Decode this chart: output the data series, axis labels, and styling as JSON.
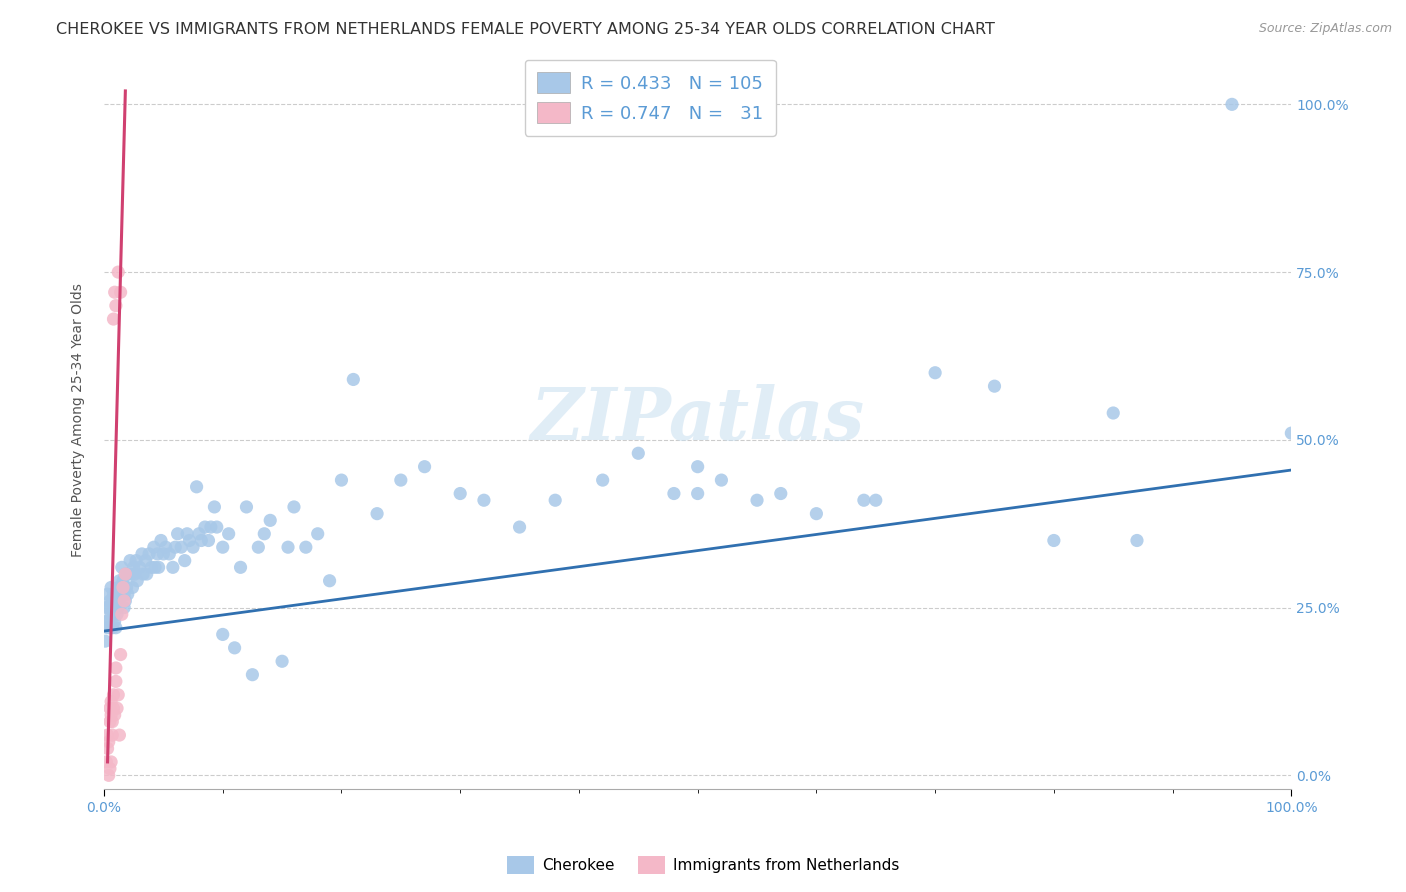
{
  "title": "CHEROKEE VS IMMIGRANTS FROM NETHERLANDS FEMALE POVERTY AMONG 25-34 YEAR OLDS CORRELATION CHART",
  "source": "Source: ZipAtlas.com",
  "ylabel": "Female Poverty Among 25-34 Year Olds",
  "watermark": "ZIPatlas",
  "legend_blue_R": "0.433",
  "legend_blue_N": "105",
  "legend_pink_R": "0.747",
  "legend_pink_N": "31",
  "legend_label_blue": "Cherokee",
  "legend_label_pink": "Immigrants from Netherlands",
  "xmin": 0.0,
  "xmax": 1.0,
  "ymin": -0.02,
  "ymax": 1.08,
  "blue_color": "#a8c8e8",
  "pink_color": "#f4b8c8",
  "trendline_blue_color": "#3070b0",
  "trendline_pink_color": "#d04070",
  "blue_scatter": [
    [
      0.001,
      0.2
    ],
    [
      0.002,
      0.25
    ],
    [
      0.002,
      0.23
    ],
    [
      0.003,
      0.27
    ],
    [
      0.003,
      0.22
    ],
    [
      0.004,
      0.25
    ],
    [
      0.004,
      0.23
    ],
    [
      0.005,
      0.26
    ],
    [
      0.005,
      0.22
    ],
    [
      0.006,
      0.28
    ],
    [
      0.006,
      0.24
    ],
    [
      0.007,
      0.26
    ],
    [
      0.007,
      0.22
    ],
    [
      0.008,
      0.24
    ],
    [
      0.008,
      0.27
    ],
    [
      0.009,
      0.25
    ],
    [
      0.009,
      0.23
    ],
    [
      0.01,
      0.26
    ],
    [
      0.01,
      0.22
    ],
    [
      0.011,
      0.27
    ],
    [
      0.011,
      0.24
    ],
    [
      0.012,
      0.28
    ],
    [
      0.012,
      0.25
    ],
    [
      0.013,
      0.29
    ],
    [
      0.013,
      0.26
    ],
    [
      0.014,
      0.27
    ],
    [
      0.015,
      0.31
    ],
    [
      0.015,
      0.28
    ],
    [
      0.016,
      0.29
    ],
    [
      0.017,
      0.27
    ],
    [
      0.017,
      0.25
    ],
    [
      0.018,
      0.3
    ],
    [
      0.018,
      0.26
    ],
    [
      0.019,
      0.28
    ],
    [
      0.02,
      0.3
    ],
    [
      0.02,
      0.27
    ],
    [
      0.022,
      0.32
    ],
    [
      0.023,
      0.3
    ],
    [
      0.024,
      0.28
    ],
    [
      0.025,
      0.31
    ],
    [
      0.026,
      0.3
    ],
    [
      0.027,
      0.32
    ],
    [
      0.028,
      0.29
    ],
    [
      0.03,
      0.31
    ],
    [
      0.032,
      0.33
    ],
    [
      0.033,
      0.3
    ],
    [
      0.035,
      0.32
    ],
    [
      0.036,
      0.3
    ],
    [
      0.038,
      0.33
    ],
    [
      0.04,
      0.31
    ],
    [
      0.042,
      0.34
    ],
    [
      0.043,
      0.31
    ],
    [
      0.045,
      0.33
    ],
    [
      0.046,
      0.31
    ],
    [
      0.048,
      0.35
    ],
    [
      0.05,
      0.33
    ],
    [
      0.052,
      0.34
    ],
    [
      0.055,
      0.33
    ],
    [
      0.058,
      0.31
    ],
    [
      0.06,
      0.34
    ],
    [
      0.062,
      0.36
    ],
    [
      0.065,
      0.34
    ],
    [
      0.068,
      0.32
    ],
    [
      0.07,
      0.36
    ],
    [
      0.072,
      0.35
    ],
    [
      0.075,
      0.34
    ],
    [
      0.078,
      0.43
    ],
    [
      0.08,
      0.36
    ],
    [
      0.082,
      0.35
    ],
    [
      0.085,
      0.37
    ],
    [
      0.088,
      0.35
    ],
    [
      0.09,
      0.37
    ],
    [
      0.093,
      0.4
    ],
    [
      0.095,
      0.37
    ],
    [
      0.1,
      0.21
    ],
    [
      0.1,
      0.34
    ],
    [
      0.105,
      0.36
    ],
    [
      0.11,
      0.19
    ],
    [
      0.115,
      0.31
    ],
    [
      0.12,
      0.4
    ],
    [
      0.125,
      0.15
    ],
    [
      0.13,
      0.34
    ],
    [
      0.135,
      0.36
    ],
    [
      0.14,
      0.38
    ],
    [
      0.15,
      0.17
    ],
    [
      0.155,
      0.34
    ],
    [
      0.16,
      0.4
    ],
    [
      0.17,
      0.34
    ],
    [
      0.18,
      0.36
    ],
    [
      0.19,
      0.29
    ],
    [
      0.2,
      0.44
    ],
    [
      0.21,
      0.59
    ],
    [
      0.23,
      0.39
    ],
    [
      0.25,
      0.44
    ],
    [
      0.27,
      0.46
    ],
    [
      0.3,
      0.42
    ],
    [
      0.32,
      0.41
    ],
    [
      0.35,
      0.37
    ],
    [
      0.38,
      0.41
    ],
    [
      0.42,
      0.44
    ],
    [
      0.45,
      0.48
    ],
    [
      0.48,
      0.42
    ],
    [
      0.5,
      0.42
    ],
    [
      0.5,
      0.46
    ],
    [
      0.52,
      0.44
    ],
    [
      0.55,
      0.41
    ],
    [
      0.57,
      0.42
    ],
    [
      0.6,
      0.39
    ],
    [
      0.64,
      0.41
    ],
    [
      0.65,
      0.41
    ],
    [
      0.7,
      0.6
    ],
    [
      0.75,
      0.58
    ],
    [
      0.8,
      0.35
    ],
    [
      0.85,
      0.54
    ],
    [
      0.87,
      0.35
    ],
    [
      0.95,
      1.0
    ],
    [
      1.0,
      0.51
    ]
  ],
  "pink_scatter": [
    [
      0.002,
      0.02
    ],
    [
      0.003,
      0.04
    ],
    [
      0.003,
      0.06
    ],
    [
      0.004,
      0.05
    ],
    [
      0.005,
      0.08
    ],
    [
      0.005,
      0.1
    ],
    [
      0.006,
      0.09
    ],
    [
      0.006,
      0.11
    ],
    [
      0.007,
      0.08
    ],
    [
      0.007,
      0.06
    ],
    [
      0.008,
      0.1
    ],
    [
      0.008,
      0.12
    ],
    [
      0.009,
      0.09
    ],
    [
      0.01,
      0.14
    ],
    [
      0.01,
      0.16
    ],
    [
      0.011,
      0.1
    ],
    [
      0.012,
      0.12
    ],
    [
      0.013,
      0.06
    ],
    [
      0.014,
      0.18
    ],
    [
      0.008,
      0.68
    ],
    [
      0.009,
      0.72
    ],
    [
      0.01,
      0.7
    ],
    [
      0.012,
      0.75
    ],
    [
      0.014,
      0.72
    ],
    [
      0.015,
      0.24
    ],
    [
      0.016,
      0.28
    ],
    [
      0.017,
      0.26
    ],
    [
      0.018,
      0.3
    ],
    [
      0.004,
      0.0
    ],
    [
      0.005,
      0.01
    ],
    [
      0.006,
      0.02
    ]
  ],
  "blue_trend_x": [
    0.0,
    1.0
  ],
  "blue_trend_y": [
    0.215,
    0.455
  ],
  "pink_trend_x": [
    0.003,
    0.018
  ],
  "pink_trend_y": [
    0.02,
    1.02
  ],
  "title_fontsize": 11.5,
  "source_fontsize": 9,
  "axis_label_color": "#5b9bd5",
  "tick_color_blue": "#5b9bd5",
  "ylabel_color": "#555555",
  "background_color": "#ffffff",
  "grid_color": "#cccccc",
  "right_ytick_labels": [
    "0.0%",
    "25.0%",
    "50.0%",
    "75.0%",
    "100.0%"
  ],
  "right_ytick_vals": [
    0.0,
    0.25,
    0.5,
    0.75,
    1.0
  ]
}
